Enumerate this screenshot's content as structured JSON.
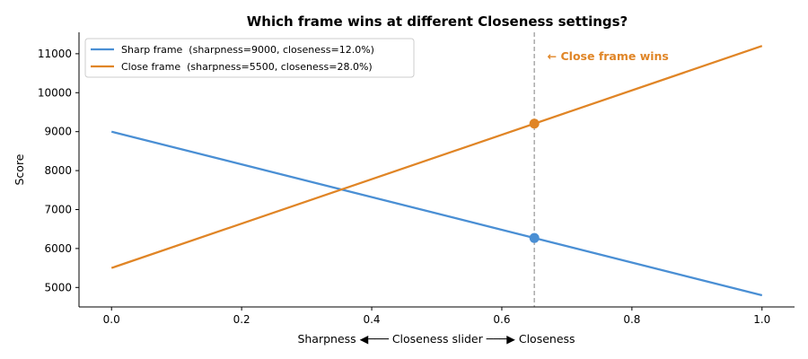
{
  "chart_data": {
    "type": "line",
    "title": "Which frame wins at different Closeness settings?",
    "xlabel": "Sharpness ◀─── Closeness slider ───▶ Closeness",
    "ylabel": "Score",
    "xlim": [
      -0.05,
      1.05
    ],
    "ylim": [
      4500,
      11550
    ],
    "xticks": [
      0.0,
      0.2,
      0.4,
      0.6,
      0.8,
      1.0
    ],
    "xtick_labels": [
      "0.0",
      "0.2",
      "0.4",
      "0.6",
      "0.8",
      "1.0"
    ],
    "yticks": [
      5000,
      6000,
      7000,
      8000,
      9000,
      10000,
      11000
    ],
    "ytick_labels": [
      "5000",
      "6000",
      "7000",
      "8000",
      "9000",
      "10000",
      "11000"
    ],
    "grid": false,
    "legend_position": "top-left",
    "series": [
      {
        "name": "Sharp frame  (sharpness=9000, closeness=12.0%)",
        "color": "#4a8fd4",
        "x": [
          0.0,
          1.0
        ],
        "y": [
          9000,
          4800
        ]
      },
      {
        "name": "Close frame  (sharpness=5500, closeness=28.0%)",
        "color": "#e08526",
        "x": [
          0.0,
          1.0
        ],
        "y": [
          5500,
          11200
        ]
      }
    ],
    "marker_x": 0.65,
    "markers": [
      {
        "series": 0,
        "x": 0.65,
        "y": 6270,
        "color": "#4a8fd4"
      },
      {
        "series": 1,
        "x": 0.65,
        "y": 9205,
        "color": "#e08526"
      }
    ],
    "vline": {
      "x": 0.65,
      "color": "#aaaaaa",
      "style": "dashed"
    },
    "annotation": {
      "text": "← Close frame wins",
      "color": "#e08526",
      "x": 0.67,
      "y": 10930
    }
  }
}
